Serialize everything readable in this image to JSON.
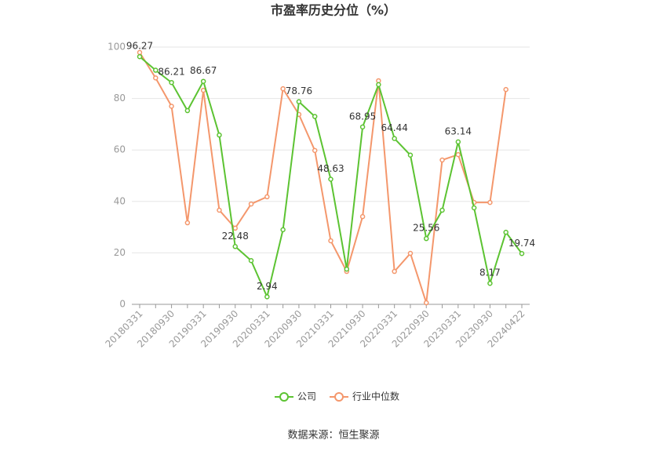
{
  "chart_data": {
    "type": "line",
    "title": "市盈率历史分位（%）",
    "categories": [
      "20180331",
      null,
      "20180930",
      null,
      "20190331",
      null,
      "20190930",
      null,
      "20200331",
      null,
      "20200930",
      null,
      "20210331",
      null,
      "20210930",
      null,
      "20220331",
      null,
      "20220930",
      null,
      "20230331",
      null,
      "20230930",
      null,
      "20240422"
    ],
    "series": [
      {
        "name": "公司",
        "color": "#5cc332",
        "values": [
          96.27,
          91,
          86.21,
          75.3,
          86.67,
          65.8,
          22.48,
          17,
          2.94,
          29,
          78.76,
          73,
          48.63,
          13.7,
          68.95,
          85.4,
          64.44,
          58,
          25.56,
          36.6,
          63.14,
          37.5,
          8.17,
          28,
          19.74
        ],
        "value_labels": [
          "96.27",
          null,
          "86.21",
          null,
          "86.67",
          null,
          "22.48",
          null,
          "2.94",
          null,
          "78.76",
          null,
          "48.63",
          null,
          "68.95",
          null,
          "64.44",
          null,
          "25.56",
          null,
          "63.14",
          null,
          "8.17",
          null,
          "19.74"
        ]
      },
      {
        "name": "行业中位数",
        "color": "#f4976c",
        "values": [
          97.9,
          88,
          77,
          31.7,
          83.2,
          36.6,
          29.6,
          39,
          41.8,
          83.8,
          73.8,
          59.8,
          24.7,
          12.8,
          34.1,
          86.9,
          12.8,
          19.8,
          0.6,
          56.1,
          58.2,
          39.6,
          39.6,
          83.5,
          null
        ]
      }
    ],
    "ylim": [
      0,
      100
    ],
    "yticks": [
      0,
      20,
      40,
      60,
      80,
      100
    ],
    "grid": true,
    "source": "数据来源：恒生聚源"
  }
}
